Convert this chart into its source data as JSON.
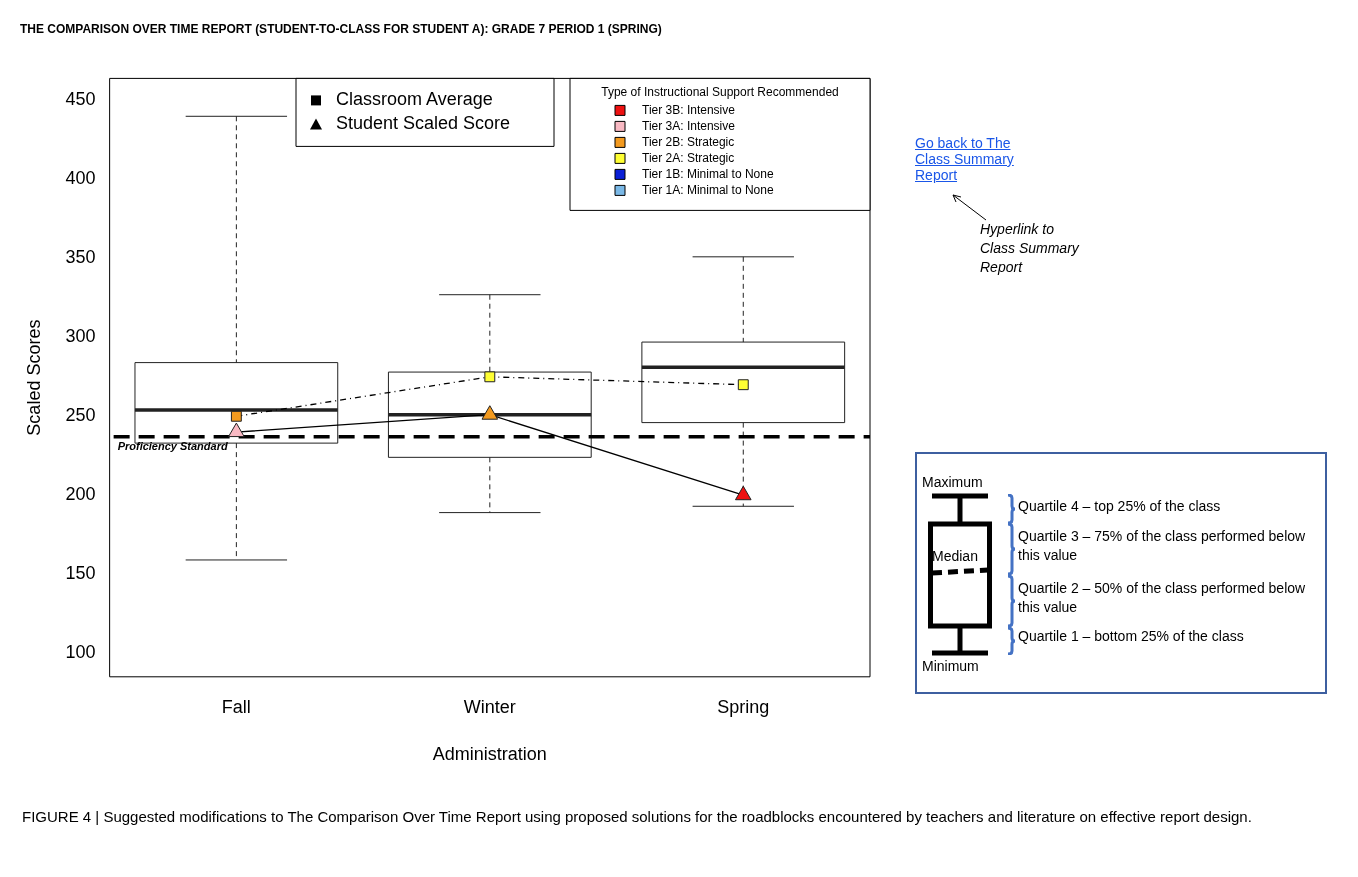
{
  "chart_data": {
    "type": "box",
    "title": "THE COMPARISON OVER TIME REPORT (STUDENT-TO-CLASS FOR STUDENT A): GRADE 7 PERIOD 1 (SPRING)",
    "xlabel": "Administration",
    "ylabel": "Scaled Scores",
    "categories": [
      "Fall",
      "Winter",
      "Spring"
    ],
    "boxes": [
      {
        "low": 159,
        "q1": 233,
        "median": 254,
        "q3": 284,
        "high": 440
      },
      {
        "low": 189,
        "q1": 224,
        "median": 251,
        "q3": 278,
        "high": 327
      },
      {
        "low": 193,
        "q1": 246,
        "median": 281,
        "q3": 297,
        "high": 351
      }
    ],
    "series": [
      {
        "type": "line",
        "name": "Classroom Average",
        "color": "#000000",
        "x": [
          "Fall",
          "Winter",
          "Spring"
        ],
        "values": [
          250,
          275,
          270
        ],
        "colors": [
          "#f39a1f",
          "#ffff33",
          "#ffff33"
        ],
        "marker": "square",
        "line_style": "dashed"
      },
      {
        "type": "line",
        "name": "Student Scaled Score",
        "color": "#000000",
        "x": [
          "Fall",
          "Winter",
          "Spring"
        ],
        "values": [
          240,
          251,
          200
        ],
        "colors": [
          "#f9b9c3",
          "#f39a1f",
          "#ee1111"
        ],
        "marker": "triangle",
        "line_style": "solid"
      },
      {
        "type": "scatter",
        "name": "Tier 3B: Intensive",
        "color": "#ee1111",
        "values": [
          null,
          null,
          null
        ]
      },
      {
        "type": "scatter",
        "name": "Tier 3A: Intensive",
        "color": "#f9b9c3",
        "values": [
          null,
          null,
          null
        ]
      },
      {
        "type": "scatter",
        "name": "Tier 2B: Strategic",
        "color": "#f39a1f",
        "values": [
          null,
          null,
          null
        ]
      },
      {
        "type": "scatter",
        "name": "Tier 2A: Strategic",
        "color": "#ffff33",
        "values": [
          null,
          null,
          null
        ]
      },
      {
        "type": "scatter",
        "name": "Tier 1B: Minimal to None",
        "color": "#0a1fd6",
        "values": [
          null,
          null,
          null
        ]
      },
      {
        "type": "scatter",
        "name": "Tier 1A: Minimal to None",
        "color": "#7ab8e6",
        "values": [
          null,
          null,
          null
        ]
      }
    ],
    "legend_title": "Type of Instructional Support Recommended",
    "legend": "top right",
    "ylim": [
      85,
      464
    ],
    "yticks": [
      100,
      150,
      200,
      250,
      300,
      350,
      400,
      450
    ],
    "grid": false,
    "ref_lines": [
      {
        "axis": "y",
        "value": 237,
        "label": "Proficiency Standard",
        "color": "#000000",
        "line_style": "dashed"
      }
    ],
    "annotations": [
      "Go back to The Class Summary Report",
      "Hyperlink to Class Summary Report",
      "Maximum",
      "Median",
      "Minimum",
      "Quartile 4 – top 25% of the class",
      "Quartile 3 – 75% of the class performed below this value",
      "Quartile 2 – 50% of the class performed below this value",
      "Quartile 1 – bottom 25% of the class",
      "FIGURE 4 | Suggested modifications to The Comparison Over Time Report using proposed solutions for the roadblocks encountered by teachers and literature on effective report design."
    ]
  }
}
